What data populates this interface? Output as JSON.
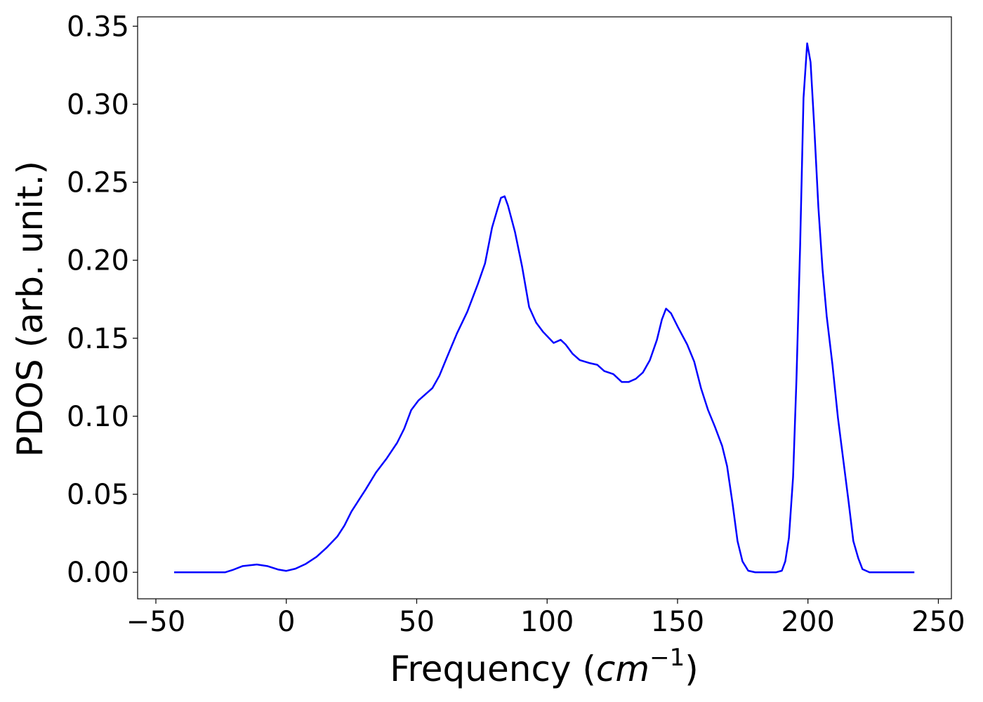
{
  "chart_data": {
    "type": "line",
    "xlabel": [
      "Frequency (",
      "cm",
      "−1",
      ")"
    ],
    "ylabel": "PDOS (arb. unit.)",
    "x": [
      -43,
      -23.4,
      -20.7,
      -16.7,
      -11.3,
      -7.3,
      -3.2,
      0,
      3.5,
      7.5,
      11.6,
      15.6,
      19.6,
      22.3,
      25,
      27.7,
      30.4,
      34.4,
      38.5,
      42.5,
      45.2,
      47.9,
      50.6,
      53.3,
      56,
      58.7,
      61.4,
      65.4,
      69.4,
      73.5,
      76.2,
      78.9,
      81,
      82.3,
      83.7,
      85,
      87.7,
      90.4,
      93.1,
      95.8,
      98.5,
      102.5,
      105.2,
      107.1,
      109.8,
      112.5,
      116.5,
      119.2,
      121.9,
      125.4,
      128.6,
      131.3,
      134,
      136.7,
      139.4,
      142.1,
      144,
      145.6,
      147.5,
      150.2,
      153.7,
      156.4,
      159,
      161.7,
      164.4,
      167.1,
      169,
      171.1,
      173,
      174.9,
      177.1,
      179.8,
      187.8,
      190,
      191.3,
      192.7,
      194.3,
      195.6,
      197,
      198.3,
      199.7,
      201,
      202.4,
      204,
      205.6,
      207.2,
      209.4,
      211.5,
      213.7,
      215.6,
      217.4,
      219.3,
      220.9,
      223.6,
      240.8
    ],
    "series": [
      {
        "color": "#0000ff",
        "values": [
          0,
          0,
          0.0014,
          0.004,
          0.005,
          0.004,
          0.0018,
          0.0009,
          0.0023,
          0.0054,
          0.0099,
          0.016,
          0.023,
          0.03,
          0.039,
          0.046,
          0.053,
          0.064,
          0.073,
          0.083,
          0.092,
          0.104,
          0.11,
          0.114,
          0.118,
          0.126,
          0.137,
          0.153,
          0.167,
          0.185,
          0.198,
          0.221,
          0.233,
          0.24,
          0.241,
          0.235,
          0.218,
          0.196,
          0.17,
          0.16,
          0.154,
          0.147,
          0.149,
          0.146,
          0.14,
          0.136,
          0.134,
          0.133,
          0.129,
          0.127,
          0.122,
          0.122,
          0.124,
          0.128,
          0.136,
          0.149,
          0.162,
          0.169,
          0.166,
          0.157,
          0.146,
          0.135,
          0.118,
          0.104,
          0.093,
          0.081,
          0.068,
          0.044,
          0.02,
          0.007,
          0.001,
          0,
          0,
          0.001,
          0.007,
          0.022,
          0.061,
          0.124,
          0.209,
          0.304,
          0.339,
          0.327,
          0.286,
          0.234,
          0.194,
          0.164,
          0.133,
          0.099,
          0.07,
          0.045,
          0.02,
          0.009,
          0.002,
          0,
          0
        ]
      }
    ],
    "xlim": [
      -57,
      255
    ],
    "ylim": [
      -0.017,
      0.356
    ],
    "xticks": [
      {
        "value": -50,
        "label": "−50"
      },
      0,
      50,
      100,
      150,
      200,
      250
    ],
    "yticks": [
      {
        "value": 0,
        "label": "0.00"
      },
      {
        "value": 0.05,
        "label": "0.05"
      },
      {
        "value": 0.1,
        "label": "0.10"
      },
      {
        "value": 0.15,
        "label": "0.15"
      },
      {
        "value": 0.2,
        "label": "0.20"
      },
      {
        "value": 0.25,
        "label": "0.25"
      },
      {
        "value": 0.3,
        "label": "0.30"
      },
      {
        "value": 0.35,
        "label": "0.35"
      }
    ],
    "grid": false
  }
}
